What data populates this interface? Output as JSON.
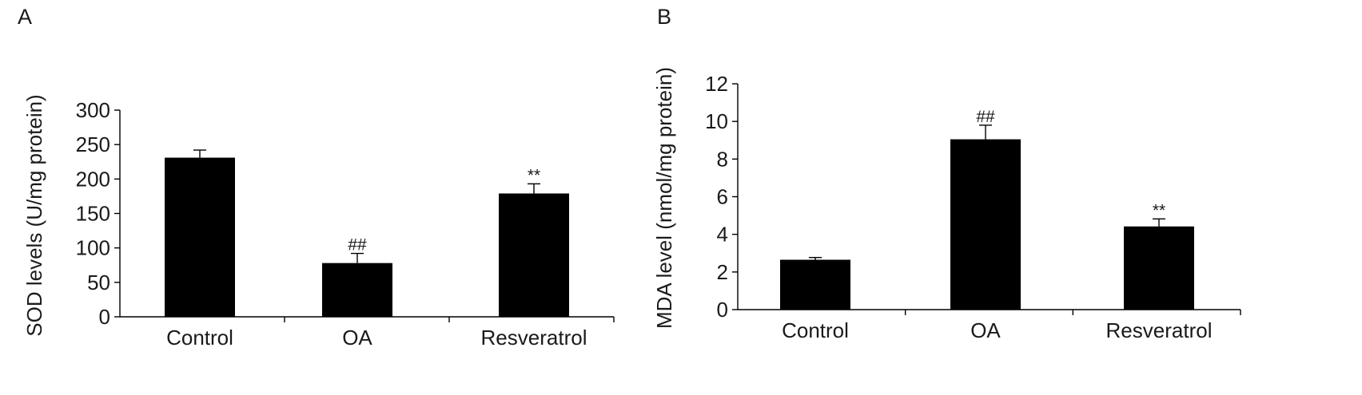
{
  "chart_data": [
    {
      "panel": "A",
      "type": "bar",
      "ylabel": "SOD levels (U/mg protein)",
      "xlabel": "",
      "ylim": [
        0,
        300
      ],
      "yticks": [
        "0",
        "50",
        "100",
        "150",
        "200",
        "250",
        "300"
      ],
      "categories": [
        "Control",
        "OA",
        "Resveratrol"
      ],
      "values": [
        231,
        78,
        179
      ],
      "errors": [
        11,
        14,
        14
      ],
      "annotations": [
        "",
        "##",
        "**"
      ],
      "color": "#000000"
    },
    {
      "panel": "B",
      "type": "bar",
      "ylabel": "MDA level (nmol/mg protein)",
      "xlabel": "",
      "ylim": [
        0,
        12
      ],
      "yticks": [
        "0",
        "2",
        "4",
        "6",
        "8",
        "10",
        "12"
      ],
      "categories": [
        "Control",
        "OA",
        "Resveratrol"
      ],
      "values": [
        2.65,
        9.05,
        4.42
      ],
      "errors": [
        0.12,
        0.75,
        0.4
      ],
      "annotations": [
        "",
        "##",
        "**"
      ],
      "color": "#000000"
    }
  ]
}
